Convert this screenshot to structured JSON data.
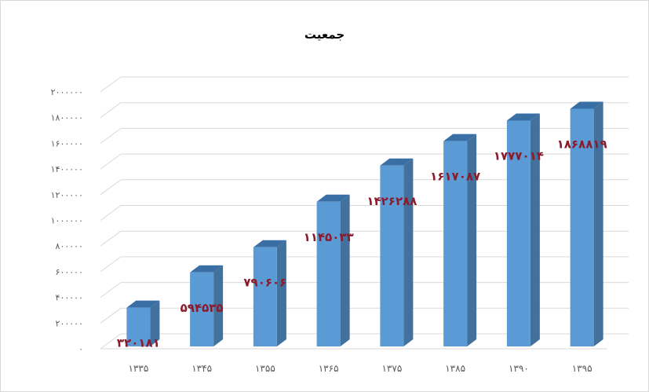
{
  "chart_data": {
    "type": "bar",
    "style": "3d-column",
    "title": "جمعیت",
    "categories": [
      "۱۳۳۵",
      "۱۳۴۵",
      "۱۳۵۵",
      "۱۳۶۵",
      "۱۳۷۵",
      "۱۳۸۵",
      "۱۳۹۰",
      "۱۳۹۵"
    ],
    "values": [
      320181,
      594535,
      790606,
      1145033,
      1426288,
      1617087,
      1777014,
      1868819
    ],
    "value_labels": [
      "۳۲۰۱۸۱",
      "۵۹۴۵۳۵",
      "۷۹۰۶۰۶",
      "۱۱۴۵۰۳۳",
      "۱۴۲۶۲۸۸",
      "۱۶۱۷۰۸۷",
      "۱۷۷۷۰۱۴",
      "۱۸۶۸۸۱۹"
    ],
    "y_ticks": [
      0,
      200000,
      400000,
      600000,
      800000,
      1000000,
      1200000,
      1400000,
      1600000,
      1800000,
      2000000
    ],
    "y_tick_labels": [
      "۰",
      "۲۰۰۰۰۰",
      "۴۰۰۰۰۰",
      "۶۰۰۰۰۰",
      "۸۰۰۰۰۰",
      "۱۰۰۰۰۰۰",
      "۱۲۰۰۰۰۰",
      "۱۴۰۰۰۰۰",
      "۱۶۰۰۰۰۰",
      "۱۸۰۰۰۰۰",
      "۲۰۰۰۰۰۰"
    ],
    "ylim": [
      0,
      2000000
    ],
    "xlabel": "",
    "ylabel": "",
    "grid": true,
    "legend": "none",
    "colors": {
      "bar_front": "#5b9bd5",
      "bar_side": "#41719c",
      "bar_top": "#3a6fa5",
      "data_label": "#8b1a2b",
      "gridline": "#d9d9d9",
      "axis_text": "#595959"
    }
  }
}
